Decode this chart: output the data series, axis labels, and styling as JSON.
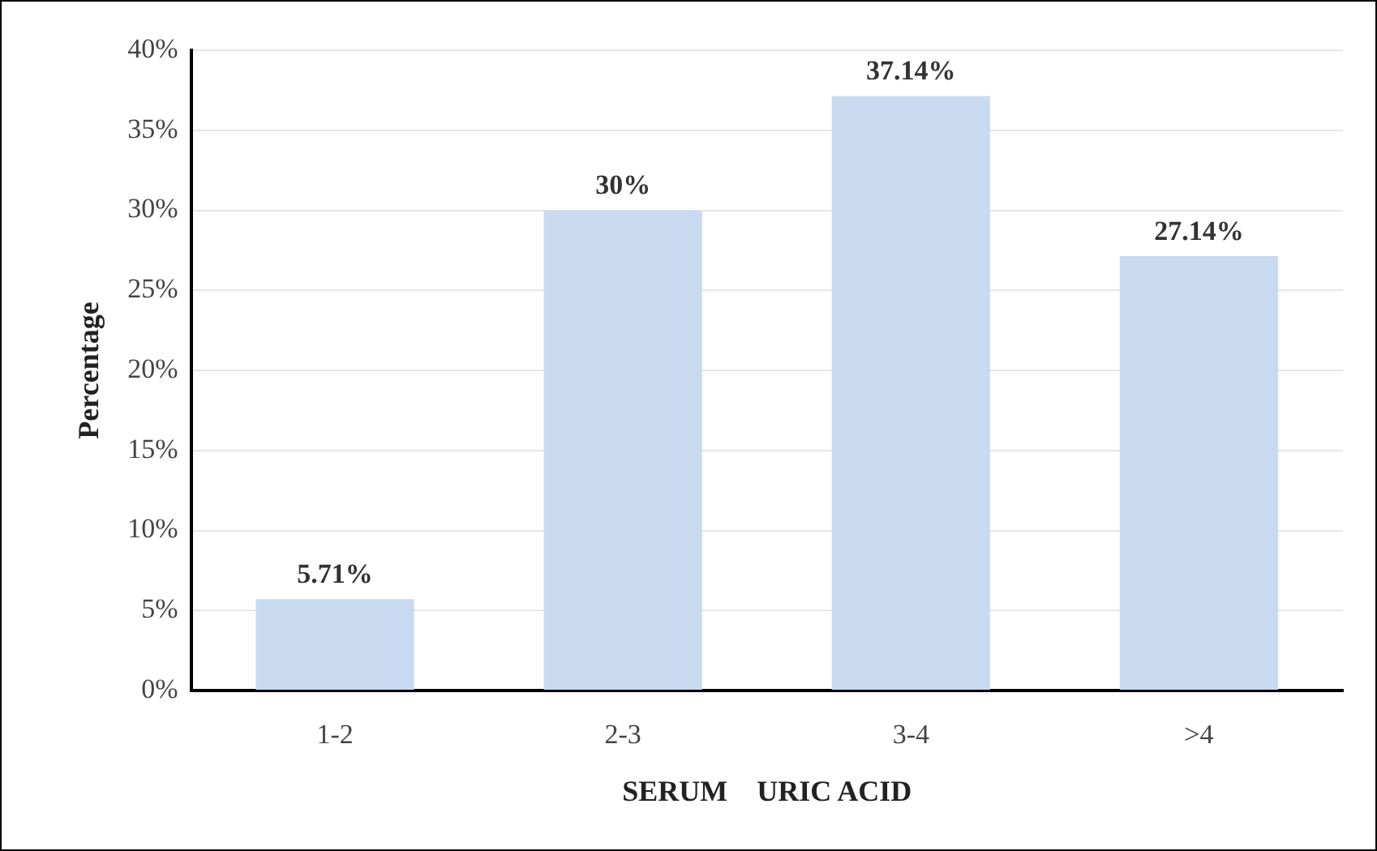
{
  "chart_data": {
    "type": "bar",
    "xlabel": "SERUM    URIC ACID",
    "ylabel": "Percentage",
    "categories": [
      "1-2",
      "2-3",
      "3-4",
      ">4"
    ],
    "values": [
      5.71,
      30,
      37.14,
      27.14
    ],
    "value_labels": [
      "5.71%",
      "30%",
      "37.14%",
      "27.14%"
    ],
    "color": "#c9daf0",
    "ylim": [
      0,
      40
    ],
    "yticks": [
      {
        "value": 0,
        "label": "0%"
      },
      {
        "value": 5,
        "label": "5%"
      },
      {
        "value": 10,
        "label": "10%"
      },
      {
        "value": 15,
        "label": "15%"
      },
      {
        "value": 20,
        "label": "20%"
      },
      {
        "value": 25,
        "label": "25%"
      },
      {
        "value": 30,
        "label": "30%"
      },
      {
        "value": 35,
        "label": "35%"
      },
      {
        "value": 40,
        "label": "40%"
      }
    ],
    "grid": "y",
    "legend": false
  }
}
